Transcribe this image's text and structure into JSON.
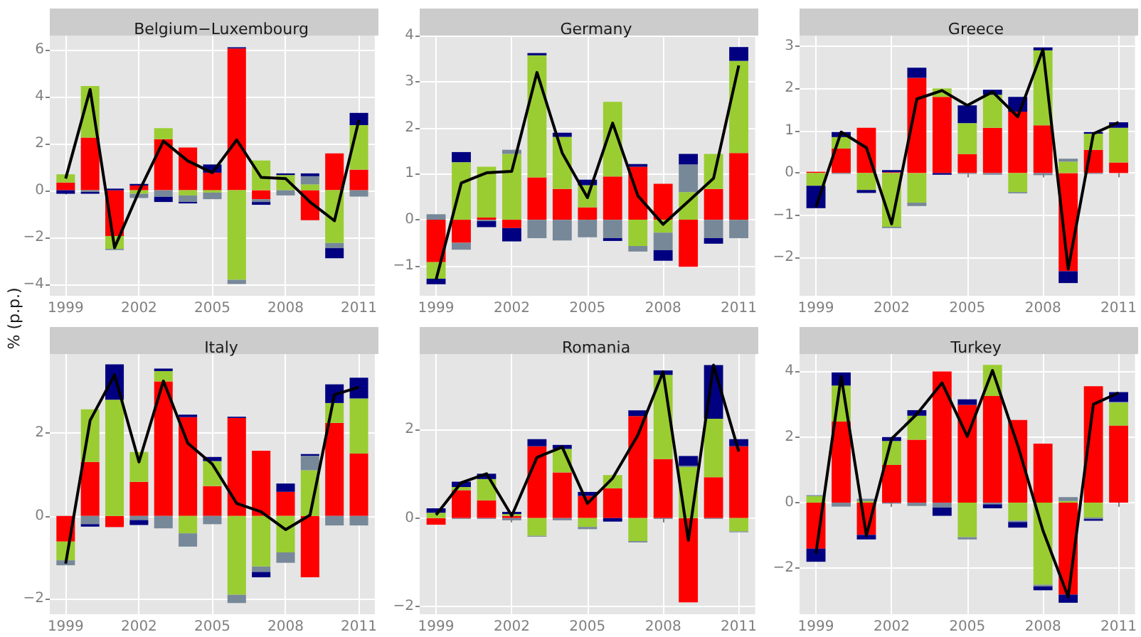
{
  "chart_data": [
    {
      "type": "bar",
      "title": "Belgium−Luxembourg",
      "ylabel": "% (p.p.)",
      "x": [
        1999,
        2000,
        2001,
        2002,
        2003,
        2004,
        2005,
        2006,
        2007,
        2008,
        2009,
        2010,
        2011
      ],
      "xlim": [
        1998.35,
        2011.65
      ],
      "xticks": [
        1999,
        2002,
        2005,
        2008,
        2011
      ],
      "ylim": [
        -4.5,
        6.6
      ],
      "yticks": [
        -4,
        -2,
        0,
        2,
        4,
        6
      ],
      "stacked": true,
      "grid": true,
      "marker": "none",
      "series": [
        {
          "color": "#ff0000",
          "values": [
            0.33,
            2.25,
            -1.95,
            0.2,
            2.18,
            1.82,
            0.75,
            6.05,
            -0.38,
            0,
            -1.28,
            1.57,
            0.88
          ]
        },
        {
          "color": "#9acd32",
          "values": [
            0.35,
            2.2,
            -0.55,
            -0.15,
            0.47,
            -0.22,
            -0.1,
            -3.82,
            1.27,
            0.65,
            0.25,
            -2.25,
            1.9
          ]
        },
        {
          "color": "#778899",
          "values": [
            0,
            -0.07,
            -0.05,
            -0.18,
            -0.28,
            -0.28,
            -0.28,
            -0.18,
            -0.12,
            -0.22,
            0.35,
            -0.22,
            -0.27
          ]
        },
        {
          "color": "#000080",
          "values": [
            -0.15,
            -0.08,
            0.07,
            0.07,
            -0.22,
            -0.06,
            0.35,
            0.05,
            -0.12,
            0.07,
            0.12,
            -0.43,
            0.52
          ]
        },
        {
          "type": "line",
          "color": "#000000",
          "values": [
            0.5,
            4.3,
            -2.45,
            -0.05,
            2.1,
            1.25,
            0.75,
            2.15,
            0.55,
            0.5,
            -0.5,
            -1.3,
            3.0
          ]
        }
      ]
    },
    {
      "type": "bar",
      "title": "Germany",
      "x": [
        1999,
        2000,
        2001,
        2002,
        2003,
        2004,
        2005,
        2006,
        2007,
        2008,
        2009,
        2010,
        2011
      ],
      "xlim": [
        1998.35,
        2011.65
      ],
      "xticks": [
        1999,
        2002,
        2005,
        2008,
        2011
      ],
      "ylim": [
        -1.65,
        4.0
      ],
      "yticks": [
        -1,
        0,
        1,
        2,
        3,
        4
      ],
      "stacked": true,
      "grid": true,
      "marker": "none",
      "series": [
        {
          "color": "#ff0000",
          "values": [
            -0.92,
            -0.5,
            0.05,
            -0.18,
            0.92,
            0.67,
            0.27,
            0.94,
            1.15,
            0.78,
            -1.02,
            0.67,
            1.45
          ]
        },
        {
          "color": "#9acd32",
          "values": [
            -0.36,
            1.25,
            1.1,
            1.43,
            2.65,
            1.13,
            0.48,
            1.62,
            -0.57,
            -0.28,
            0.6,
            0.76,
            2.0
          ]
        },
        {
          "color": "#778899",
          "values": [
            0.12,
            -0.15,
            -0.03,
            0.09,
            -0.4,
            -0.45,
            -0.38,
            -0.4,
            -0.12,
            -0.38,
            0.6,
            -0.4,
            -0.4
          ]
        },
        {
          "color": "#000080",
          "values": [
            -0.12,
            0.22,
            -0.13,
            -0.29,
            0.05,
            0.09,
            0.12,
            -0.06,
            0.06,
            -0.23,
            0.23,
            -0.12,
            0.3
          ]
        },
        {
          "type": "line",
          "color": "#000000",
          "values": [
            -1.3,
            0.8,
            1.02,
            1.05,
            3.2,
            1.45,
            0.48,
            2.1,
            0.52,
            -0.1,
            0.4,
            0.9,
            3.35
          ]
        }
      ]
    },
    {
      "type": "bar",
      "title": "Greece",
      "x": [
        1999,
        2000,
        2001,
        2002,
        2003,
        2004,
        2005,
        2006,
        2007,
        2008,
        2009,
        2010,
        2011
      ],
      "xlim": [
        1998.35,
        2011.65
      ],
      "xticks": [
        1999,
        2002,
        2005,
        2008,
        2011
      ],
      "ylim": [
        -2.9,
        3.25
      ],
      "yticks": [
        -2,
        -1,
        0,
        1,
        2,
        3
      ],
      "stacked": true,
      "grid": true,
      "marker": "none",
      "series": [
        {
          "color": "#ff0000",
          "values": [
            0.03,
            0.58,
            1.07,
            0.02,
            2.25,
            1.8,
            0.45,
            1.07,
            1.45,
            1.13,
            -2.32,
            0.55,
            0.25
          ]
        },
        {
          "color": "#9acd32",
          "values": [
            -0.3,
            0.27,
            -0.4,
            -1.27,
            -0.7,
            0.2,
            0.73,
            0.78,
            -0.45,
            1.77,
            0.27,
            0.38,
            0.82
          ]
        },
        {
          "color": "#778899",
          "values": [
            0,
            -0.02,
            0,
            -0.03,
            -0.08,
            0,
            -0.02,
            -0.04,
            -0.03,
            -0.05,
            0.07,
            -0.02,
            0
          ]
        },
        {
          "color": "#000080",
          "values": [
            -0.53,
            0.12,
            -0.07,
            0.05,
            0.24,
            -0.04,
            0.42,
            0.12,
            0.35,
            0.07,
            -0.28,
            0.04,
            0.13
          ]
        },
        {
          "type": "line",
          "color": "#000000",
          "values": [
            -0.8,
            0.97,
            0.6,
            -1.2,
            1.75,
            1.95,
            1.6,
            1.92,
            1.33,
            2.92,
            -2.27,
            0.93,
            1.2
          ]
        }
      ]
    },
    {
      "type": "bar",
      "title": "Italy",
      "x": [
        1999,
        2000,
        2001,
        2002,
        2003,
        2004,
        2005,
        2006,
        2007,
        2008,
        2009,
        2010,
        2011
      ],
      "xlim": [
        1998.35,
        2011.65
      ],
      "xticks": [
        1999,
        2002,
        2005,
        2008,
        2011
      ],
      "ylim": [
        -2.37,
        3.9
      ],
      "yticks": [
        -2,
        0,
        2
      ],
      "stacked": true,
      "grid": true,
      "marker": "none",
      "series": [
        {
          "color": "#ff0000",
          "values": [
            -0.62,
            1.3,
            -0.27,
            0.82,
            3.24,
            2.38,
            0.72,
            2.36,
            1.57,
            0.58,
            -1.48,
            2.24,
            1.5
          ]
        },
        {
          "color": "#9acd32",
          "values": [
            -0.45,
            1.27,
            2.8,
            0.72,
            0.25,
            -0.42,
            0.6,
            -1.9,
            -1.22,
            -0.88,
            1.1,
            0.48,
            1.33
          ]
        },
        {
          "color": "#778899",
          "values": [
            -0.12,
            -0.2,
            0,
            -0.1,
            -0.3,
            -0.32,
            -0.2,
            -0.2,
            -0.13,
            -0.25,
            0.35,
            -0.23,
            -0.23
          ]
        },
        {
          "color": "#000080",
          "values": [
            0,
            -0.06,
            0.85,
            -0.12,
            0.06,
            0.06,
            0.1,
            0.03,
            -0.13,
            0.2,
            0.04,
            0.45,
            0.5
          ]
        },
        {
          "type": "line",
          "color": "#000000",
          "values": [
            -1.15,
            2.3,
            3.4,
            1.3,
            3.25,
            1.75,
            1.25,
            0.3,
            0.1,
            -0.33,
            0.02,
            2.92,
            3.1
          ]
        }
      ]
    },
    {
      "type": "bar",
      "title": "Romania",
      "x": [
        1999,
        2000,
        2001,
        2002,
        2003,
        2004,
        2005,
        2006,
        2007,
        2008,
        2009,
        2010,
        2011
      ],
      "xlim": [
        1998.35,
        2011.65
      ],
      "xticks": [
        1999,
        2002,
        2005,
        2008,
        2011
      ],
      "ylim": [
        -2.17,
        3.7
      ],
      "yticks": [
        -2,
        0,
        2
      ],
      "stacked": true,
      "grid": true,
      "marker": "none",
      "series": [
        {
          "color": "#ff0000",
          "values": [
            -0.15,
            0.63,
            0.4,
            0.05,
            1.62,
            1.03,
            0.5,
            0.67,
            2.3,
            1.33,
            -1.9,
            0.92,
            1.62
          ]
        },
        {
          "color": "#9acd32",
          "values": [
            0.12,
            0.07,
            0.48,
            0.04,
            -0.4,
            0.53,
            -0.2,
            0.3,
            -0.52,
            1.9,
            1.15,
            1.32,
            -0.3
          ]
        },
        {
          "color": "#778899",
          "values": [
            0,
            -0.02,
            -0.02,
            -0.05,
            -0.02,
            -0.05,
            -0.05,
            0,
            -0.03,
            -0.02,
            0.03,
            -0.02,
            -0.02
          ]
        },
        {
          "color": "#000080",
          "values": [
            0.1,
            0.12,
            0.12,
            0.05,
            0.16,
            0.09,
            0.09,
            -0.08,
            0.13,
            0.1,
            0.22,
            1.21,
            0.16
          ]
        },
        {
          "type": "line",
          "color": "#000000",
          "values": [
            0.07,
            0.8,
            1.0,
            0.05,
            1.37,
            1.6,
            0.33,
            0.9,
            1.87,
            3.3,
            -0.5,
            3.45,
            1.5
          ]
        }
      ]
    },
    {
      "type": "bar",
      "title": "Turkey",
      "x": [
        1999,
        2000,
        2001,
        2002,
        2003,
        2004,
        2005,
        2006,
        2007,
        2008,
        2009,
        2010,
        2011
      ],
      "xlim": [
        1998.35,
        2011.65
      ],
      "xticks": [
        1999,
        2002,
        2005,
        2008,
        2011
      ],
      "ylim": [
        -3.4,
        4.53
      ],
      "yticks": [
        -2,
        0,
        2,
        4
      ],
      "stacked": true,
      "grid": true,
      "marker": "none",
      "series": [
        {
          "color": "#ff0000",
          "values": [
            -1.4,
            2.47,
            -0.98,
            1.15,
            1.92,
            4.0,
            2.98,
            3.25,
            2.52,
            1.8,
            -2.8,
            3.55,
            2.35
          ]
        },
        {
          "color": "#9acd32",
          "values": [
            0.2,
            1.1,
            0.05,
            0.73,
            0.73,
            0,
            -1.05,
            0.95,
            -0.55,
            -2.5,
            0.05,
            -0.45,
            0.7
          ]
        },
        {
          "color": "#778899",
          "values": [
            0.03,
            -0.12,
            0.07,
            -0.03,
            -0.1,
            -0.15,
            -0.07,
            -0.05,
            -0.04,
            -0.05,
            0.12,
            -0.05,
            0.02
          ]
        },
        {
          "color": "#000080",
          "values": [
            -0.4,
            0.4,
            -0.14,
            0.12,
            0.17,
            -0.25,
            0.17,
            -0.12,
            -0.17,
            -0.12,
            -0.25,
            -0.05,
            0.3
          ]
        },
        {
          "type": "line",
          "color": "#000000",
          "values": [
            -1.55,
            3.85,
            -1.0,
            1.95,
            2.7,
            3.65,
            2.02,
            4.03,
            1.75,
            -0.85,
            -2.87,
            3.0,
            3.35
          ]
        }
      ]
    }
  ]
}
